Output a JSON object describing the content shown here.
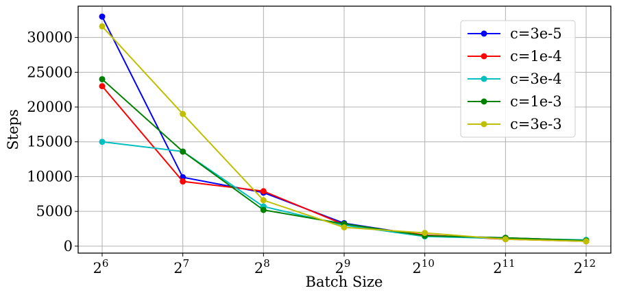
{
  "chart_data": {
    "type": "line",
    "xlabel": "Batch Size",
    "ylabel": "Steps",
    "x_base": "2",
    "x_exponents": [
      "6",
      "7",
      "8",
      "9",
      "10",
      "11",
      "12"
    ],
    "ylim": [
      -1000,
      34500
    ],
    "yticks": [
      0,
      5000,
      10000,
      15000,
      20000,
      25000,
      30000
    ],
    "grid": true,
    "legend_position": "top-right",
    "series": [
      {
        "name": "c=3e-5",
        "color": "#0000ff",
        "values": [
          33000,
          9900,
          7700,
          3300,
          1500,
          1200,
          800
        ]
      },
      {
        "name": "c=1e-4",
        "color": "#ff0000",
        "values": [
          23000,
          9300,
          7900,
          3100,
          1600,
          1000,
          700
        ]
      },
      {
        "name": "c=3e-4",
        "color": "#00bfbf",
        "values": [
          15000,
          13600,
          5700,
          3000,
          1400,
          1100,
          900
        ]
      },
      {
        "name": "c=1e-3",
        "color": "#008000",
        "values": [
          24000,
          13600,
          5200,
          3200,
          1500,
          1200,
          800
        ]
      },
      {
        "name": "c=3e-3",
        "color": "#bfbf00",
        "values": [
          31600,
          19000,
          6600,
          2700,
          1900,
          1000,
          700
        ]
      }
    ]
  }
}
